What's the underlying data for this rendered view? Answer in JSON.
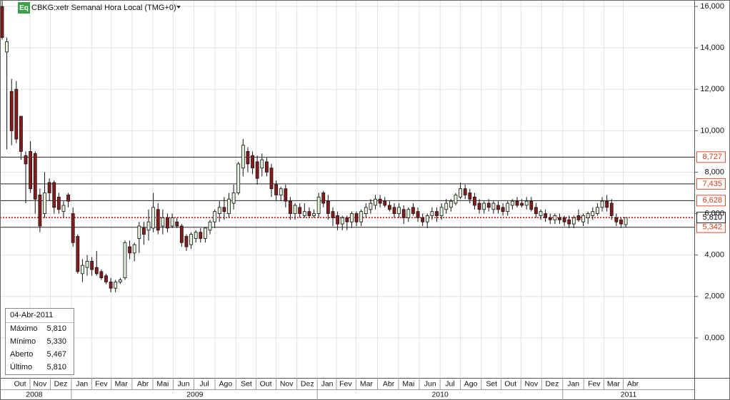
{
  "chart_data": {
    "type": "candlestick",
    "badge": "Eq",
    "title": "CBKG:xetr Semanal Hora Local (TMG+0)",
    "up_color": "#e4f2dc",
    "down_color": "#8b1a1a",
    "grid": true,
    "xlim": [
      -0.45,
      146.5
    ],
    "ylim": [
      -1.93,
      16.31
    ],
    "yticks": [
      {
        "value": 16,
        "label": "16,000"
      },
      {
        "value": 14,
        "label": "14,000"
      },
      {
        "value": 12,
        "label": "12,000"
      },
      {
        "value": 10,
        "label": "10,000"
      },
      {
        "value": 8,
        "label": "8,000"
      },
      {
        "value": 6,
        "label": "6,000"
      },
      {
        "value": 4,
        "label": "4,000"
      },
      {
        "value": 2,
        "label": "2,000"
      },
      {
        "value": 0,
        "label": "0,000"
      }
    ],
    "xticks": [
      {
        "value": 3.8,
        "label": "Out"
      },
      {
        "value": 8.0,
        "label": "Nov"
      },
      {
        "value": 12.4,
        "label": "Dez"
      },
      {
        "value": 16.9,
        "label": "Jan"
      },
      {
        "value": 21.0,
        "label": "Fev"
      },
      {
        "value": 25.2,
        "label": "Mar"
      },
      {
        "value": 29.8,
        "label": "Abr"
      },
      {
        "value": 34.0,
        "label": "Mai"
      },
      {
        "value": 38.4,
        "label": "Jun"
      },
      {
        "value": 42.8,
        "label": "Jul"
      },
      {
        "value": 47.3,
        "label": "Ago"
      },
      {
        "value": 51.7,
        "label": "Set"
      },
      {
        "value": 55.8,
        "label": "Out"
      },
      {
        "value": 60.2,
        "label": "Nov"
      },
      {
        "value": 64.6,
        "label": "Dez"
      },
      {
        "value": 68.8,
        "label": "Jan"
      },
      {
        "value": 72.7,
        "label": "Fev"
      },
      {
        "value": 77.1,
        "label": "Mar"
      },
      {
        "value": 81.8,
        "label": "Abr"
      },
      {
        "value": 86.0,
        "label": "Mai"
      },
      {
        "value": 90.6,
        "label": "Jun"
      },
      {
        "value": 94.8,
        "label": "Jul"
      },
      {
        "value": 99.2,
        "label": "Ago"
      },
      {
        "value": 103.6,
        "label": "Set"
      },
      {
        "value": 107.6,
        "label": "Out"
      },
      {
        "value": 112.0,
        "label": "Nov"
      },
      {
        "value": 116.4,
        "label": "Dez"
      },
      {
        "value": 120.9,
        "label": "Jan"
      },
      {
        "value": 125.3,
        "label": "Fev"
      },
      {
        "value": 129.4,
        "label": "Mar"
      },
      {
        "value": 133.5,
        "label": "Abr"
      }
    ],
    "year_ticks": [
      {
        "value": 6.8,
        "label": "2008"
      },
      {
        "value": 40.8,
        "label": "2009"
      },
      {
        "value": 92.7,
        "label": "2010"
      },
      {
        "value": 132.6,
        "label": "2011"
      }
    ],
    "levels": [
      {
        "value": 8.727,
        "label": "8,727"
      },
      {
        "value": 7.435,
        "label": "7,435"
      },
      {
        "value": 6.628,
        "label": "6,628"
      },
      {
        "value": 5.342,
        "label": "5,342"
      }
    ],
    "last_price": {
      "value": 5.81,
      "label": "5,810"
    },
    "info": {
      "date": "04-Abr-2011",
      "rows": [
        {
          "label": "Máximo",
          "value": "5,810"
        },
        {
          "label": "Mínimo",
          "value": "5,330"
        },
        {
          "label": "Aberto",
          "value": "5,467"
        },
        {
          "label": "Último",
          "value": "5,810"
        }
      ]
    },
    "x": [
      0,
      1,
      2,
      3,
      4,
      5,
      6,
      7,
      8,
      9,
      10,
      11,
      12,
      13,
      14,
      15,
      16,
      17,
      18,
      19,
      20,
      21,
      22,
      23,
      24,
      25,
      26,
      27,
      28,
      29,
      30,
      31,
      32,
      33,
      34,
      35,
      36,
      37,
      38,
      39,
      40,
      41,
      42,
      43,
      44,
      45,
      46,
      47,
      48,
      49,
      50,
      51,
      52,
      53,
      54,
      55,
      56,
      57,
      58,
      59,
      60,
      61,
      62,
      63,
      64,
      65,
      66,
      67,
      68,
      69,
      70,
      71,
      72,
      73,
      74,
      75,
      76,
      77,
      78,
      79,
      80,
      81,
      82,
      83,
      84,
      85,
      86,
      87,
      88,
      89,
      90,
      91,
      92,
      93,
      94,
      95,
      96,
      97,
      98,
      99,
      100,
      101,
      102,
      103,
      104,
      105,
      106,
      107,
      108,
      109,
      110,
      111,
      112,
      113,
      114,
      115,
      116,
      117,
      118,
      119,
      120,
      121,
      122,
      123,
      124,
      125,
      126,
      127,
      128,
      129,
      130,
      131,
      132
    ],
    "open": [
      16.0,
      13.8,
      11.9,
      12.0,
      10.7,
      8.8,
      9.0,
      8.9,
      6.9,
      6.0,
      7.5,
      7.5,
      6.8,
      6.1,
      6.9,
      6.0,
      4.9,
      3.1,
      3.4,
      3.7,
      3.4,
      3.2,
      3.0,
      2.7,
      2.4,
      2.7,
      2.9,
      4.4,
      4.1,
      4.8,
      5.3,
      5.2,
      5.3,
      6.2,
      5.4,
      5.8,
      5.4,
      5.6,
      5.4,
      4.9,
      4.5,
      4.8,
      5.1,
      4.8,
      5.2,
      5.6,
      6.0,
      6.3,
      6.0,
      6.5,
      7.0,
      8.2,
      9.0,
      8.8,
      8.5,
      8.2,
      8.5,
      8.2,
      7.4,
      6.9,
      7.2,
      6.6,
      6.0,
      6.3,
      5.9,
      6.1,
      5.9,
      6.0,
      7.0,
      6.6,
      6.1,
      5.9,
      5.5,
      5.8,
      5.6,
      6.0,
      5.6,
      6.0,
      6.2,
      6.4,
      6.7,
      6.6,
      6.4,
      6.3,
      6.0,
      6.2,
      5.8,
      6.3,
      6.1,
      5.8,
      5.6,
      5.9,
      6.1,
      5.9,
      6.2,
      6.3,
      6.5,
      6.8,
      7.2,
      7.0,
      6.8,
      6.5,
      6.2,
      6.5,
      6.2,
      6.4,
      6.3,
      6.1,
      6.4,
      6.6,
      6.5,
      6.4,
      6.6,
      6.3,
      5.9,
      6.0,
      5.8,
      5.7,
      5.8,
      5.8,
      5.7,
      5.5,
      5.9,
      5.6,
      5.8,
      5.9,
      6.0,
      6.3,
      6.6,
      6.5,
      5.8,
      5.7,
      5.467
    ],
    "high": [
      16.3,
      14.5,
      12.5,
      12.4,
      10.7,
      9.0,
      9.5,
      9.0,
      7.2,
      8.0,
      7.7,
      7.6,
      7.0,
      6.6,
      7.0,
      6.3,
      5.0,
      3.8,
      4.0,
      3.9,
      4.2,
      3.3,
      3.1,
      2.9,
      2.8,
      2.9,
      4.7,
      4.7,
      4.6,
      5.6,
      5.6,
      6.2,
      7.0,
      6.5,
      6.2,
      6.0,
      6.0,
      5.8,
      5.5,
      5.0,
      5.1,
      5.2,
      5.3,
      5.3,
      5.7,
      6.2,
      6.6,
      6.8,
      7.0,
      7.4,
      8.5,
      9.6,
      9.2,
      9.0,
      8.8,
      8.9,
      8.7,
      8.4,
      7.6,
      7.3,
      7.4,
      6.8,
      6.5,
      6.5,
      6.5,
      6.3,
      6.2,
      7.0,
      7.1,
      6.9,
      6.3,
      6.1,
      5.9,
      5.9,
      6.1,
      6.1,
      6.2,
      6.5,
      6.7,
      6.9,
      6.9,
      6.8,
      6.6,
      6.5,
      6.5,
      6.4,
      6.3,
      6.5,
      6.3,
      6.0,
      6.0,
      6.3,
      6.3,
      6.5,
      6.7,
      6.7,
      7.0,
      7.5,
      7.4,
      7.2,
      7.0,
      6.7,
      6.6,
      6.7,
      6.6,
      6.6,
      6.5,
      6.6,
      6.7,
      6.8,
      6.7,
      6.8,
      6.8,
      6.5,
      6.2,
      6.2,
      6.0,
      6.0,
      6.0,
      5.9,
      5.9,
      5.9,
      6.2,
      6.0,
      6.1,
      6.3,
      6.5,
      6.8,
      6.9,
      6.7,
      6.0,
      5.8,
      5.81
    ],
    "low": [
      14.4,
      9.1,
      9.3,
      9.4,
      8.6,
      6.5,
      7.0,
      6.0,
      5.1,
      5.8,
      6.6,
      6.0,
      6.0,
      5.8,
      6.3,
      4.4,
      3.1,
      2.7,
      3.0,
      3.0,
      3.0,
      2.8,
      2.6,
      2.2,
      2.2,
      2.6,
      2.8,
      3.8,
      3.7,
      4.1,
      4.5,
      4.7,
      5.1,
      5.0,
      5.0,
      5.1,
      5.3,
      5.3,
      4.4,
      4.2,
      4.3,
      4.6,
      4.6,
      4.6,
      5.0,
      5.3,
      5.6,
      5.7,
      5.8,
      6.2,
      6.9,
      7.8,
      8.0,
      7.9,
      7.4,
      7.8,
      7.8,
      6.8,
      6.6,
      6.6,
      6.3,
      5.7,
      5.7,
      5.8,
      5.8,
      5.8,
      5.8,
      5.8,
      6.3,
      5.7,
      5.4,
      5.2,
      5.2,
      5.2,
      5.3,
      5.4,
      5.4,
      5.8,
      6.0,
      6.2,
      6.3,
      6.3,
      6.1,
      5.8,
      5.8,
      5.5,
      5.6,
      5.9,
      5.6,
      5.4,
      5.3,
      5.7,
      5.6,
      5.7,
      6.0,
      6.1,
      6.4,
      6.7,
      6.7,
      6.5,
      6.2,
      6.0,
      6.0,
      6.1,
      6.0,
      6.0,
      5.9,
      5.9,
      6.2,
      6.3,
      6.3,
      6.2,
      6.1,
      5.8,
      5.7,
      5.6,
      5.5,
      5.5,
      5.5,
      5.4,
      5.3,
      5.3,
      5.6,
      5.4,
      5.5,
      5.7,
      5.9,
      6.1,
      6.1,
      5.7,
      5.4,
      5.3,
      5.33
    ],
    "close": [
      14.5,
      14.3,
      10.0,
      9.6,
      9.0,
      8.4,
      7.2,
      6.7,
      5.4,
      7.0,
      7.0,
      6.3,
      6.2,
      6.4,
      6.6,
      4.6,
      3.2,
      3.5,
      3.7,
      3.3,
      3.1,
      2.9,
      2.7,
      2.4,
      2.7,
      2.8,
      4.6,
      4.1,
      4.5,
      5.4,
      5.0,
      5.6,
      6.3,
      5.2,
      5.8,
      5.3,
      5.8,
      5.4,
      4.6,
      4.4,
      5.0,
      5.1,
      4.8,
      5.3,
      5.6,
      6.1,
      6.3,
      6.1,
      6.7,
      7.0,
      8.4,
      9.3,
      8.4,
      8.2,
      7.7,
      8.6,
      8.0,
      7.2,
      6.9,
      7.2,
      6.6,
      6.0,
      6.4,
      6.0,
      6.1,
      5.9,
      6.0,
      6.8,
      6.5,
      6.0,
      5.8,
      5.5,
      5.8,
      5.6,
      6.0,
      5.6,
      6.1,
      6.3,
      6.5,
      6.7,
      6.5,
      6.4,
      6.2,
      6.0,
      6.3,
      5.8,
      6.2,
      6.0,
      5.8,
      5.6,
      5.9,
      6.1,
      5.9,
      6.3,
      6.5,
      6.6,
      6.9,
      7.2,
      6.9,
      6.7,
      6.4,
      6.2,
      6.5,
      6.3,
      6.5,
      6.2,
      6.1,
      6.5,
      6.6,
      6.4,
      6.4,
      6.6,
      6.2,
      6.0,
      6.1,
      5.8,
      5.7,
      5.9,
      5.7,
      5.6,
      5.5,
      5.8,
      5.7,
      5.9,
      6.0,
      6.1,
      6.3,
      6.6,
      6.3,
      5.9,
      5.6,
      5.5,
      5.81
    ]
  }
}
